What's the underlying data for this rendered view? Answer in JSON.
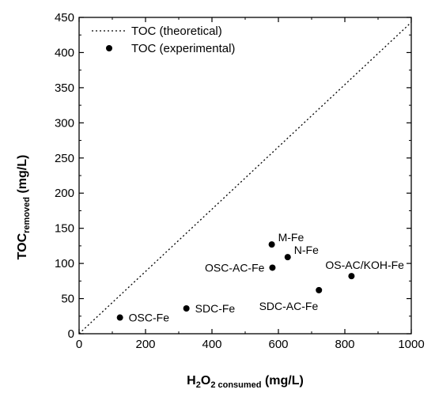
{
  "chart_data": {
    "type": "scatter",
    "xlim": [
      0,
      1000
    ],
    "ylim": [
      0,
      450
    ],
    "x_ticks": [
      "0",
      "200",
      "400",
      "600",
      "800",
      "1000"
    ],
    "y_ticks": [
      "0",
      "50",
      "100",
      "150",
      "200",
      "250",
      "300",
      "350",
      "400",
      "450"
    ],
    "xlabel": {
      "main": "H",
      "sub1": "2",
      "mid": "O",
      "sub2": "2 consumed",
      "unit": " (mg/L)"
    },
    "ylabel": {
      "main": "TOC",
      "sub": "removed",
      "unit": " (mg/L)"
    },
    "legend_position": "top-left",
    "series": [
      {
        "name": "TOC (theoretical)",
        "kind": "line",
        "style": "dotted",
        "x": [
          0,
          1000
        ],
        "y": [
          0,
          443
        ]
      },
      {
        "name": "TOC (experimental)",
        "kind": "scatter",
        "points": [
          {
            "label": "OSC-Fe",
            "x": 123,
            "y": 23,
            "label_pos": "right"
          },
          {
            "label": "SDC-Fe",
            "x": 323,
            "y": 36,
            "label_pos": "right"
          },
          {
            "label": "M-Fe",
            "x": 580,
            "y": 127,
            "label_pos": "right-up"
          },
          {
            "label": "N-Fe",
            "x": 628,
            "y": 109,
            "label_pos": "right-up"
          },
          {
            "label": "OSC-AC-Fe",
            "x": 582,
            "y": 94,
            "label_pos": "left"
          },
          {
            "label": "SDC-AC-Fe",
            "x": 722,
            "y": 62,
            "label_pos": "below-left"
          },
          {
            "label": "OS-AC/KOH-Fe",
            "x": 820,
            "y": 82,
            "label_pos": "above"
          }
        ]
      }
    ]
  }
}
